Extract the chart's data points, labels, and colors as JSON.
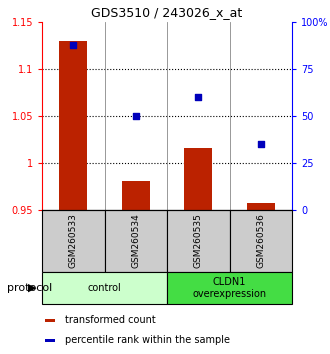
{
  "title": "GDS3510 / 243026_x_at",
  "samples": [
    "GSM260533",
    "GSM260534",
    "GSM260535",
    "GSM260536"
  ],
  "red_values": [
    1.13,
    0.981,
    1.016,
    0.957
  ],
  "blue_values": [
    88,
    50,
    60,
    35
  ],
  "ylim_left": [
    0.95,
    1.15
  ],
  "ylim_right": [
    0,
    100
  ],
  "yticks_left": [
    0.95,
    1.0,
    1.05,
    1.1,
    1.15
  ],
  "ytick_labels_left": [
    "0.95",
    "1",
    "1.05",
    "1.1",
    "1.15"
  ],
  "yticks_right": [
    0,
    25,
    50,
    75,
    100
  ],
  "ytick_labels_right": [
    "0",
    "25",
    "50",
    "75",
    "100%"
  ],
  "bar_color": "#bb2200",
  "scatter_color": "#0000bb",
  "groups": [
    {
      "label": "control",
      "samples": [
        0,
        1
      ],
      "bg_color": "#ccffcc"
    },
    {
      "label": "CLDN1\noverexpression",
      "samples": [
        2,
        3
      ],
      "bg_color": "#44dd44"
    }
  ],
  "protocol_label": "protocol",
  "legend_red": "transformed count",
  "legend_blue": "percentile rank within the sample",
  "bar_width": 0.45,
  "sample_label_bg": "#cccccc"
}
